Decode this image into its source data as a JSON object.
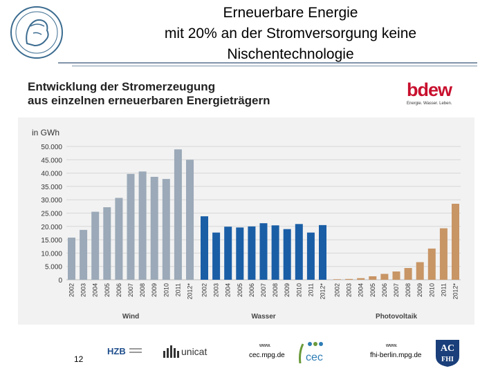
{
  "slide": {
    "title_line1": "Erneuerbare Energie",
    "title_line2": "mit 20% an der Stromversorgung keine",
    "title_line3": "Nischentechnologie",
    "page_number": "12"
  },
  "chart_header": {
    "line1": "Entwicklung der Stromerzeugung",
    "line2": "aus einzelnen erneuerbaren Energieträgern"
  },
  "bdew": {
    "name": "bdew",
    "tagline": "Energie. Wasser. Leben."
  },
  "footer": {
    "hzb_line1": "HZB",
    "unicat_text": "unicat",
    "cec_www": "www.",
    "cec_url": "cec.mpg.de",
    "cec_letters": "cec",
    "fhi_www": "www.",
    "fhi_url": "fhi-berlin.mpg.de",
    "ac_top": "AC",
    "ac_bottom": "FHI"
  },
  "chart_data": {
    "type": "bar",
    "ylabel": "in GWh",
    "ylim": [
      0,
      50000
    ],
    "yticks": [
      "0",
      "5.000",
      "10.000",
      "15.000",
      "20.000",
      "25.000",
      "30.000",
      "35.000",
      "40.000",
      "45.000",
      "50.000"
    ],
    "grid": true,
    "categories": [
      "2002",
      "2003",
      "2004",
      "2005",
      "2006",
      "2007",
      "2008",
      "2009",
      "2010",
      "2011",
      "2012*"
    ],
    "series": [
      {
        "name": "Wind",
        "color": "#9ba9b8",
        "values": [
          15800,
          18700,
          25500,
          27200,
          30700,
          39700,
          40600,
          38600,
          37800,
          48900,
          45000
        ]
      },
      {
        "name": "Wasser",
        "color": "#1a5ea6",
        "values": [
          23800,
          17700,
          19900,
          19600,
          20000,
          21200,
          20400,
          19000,
          20900,
          17700,
          20500
        ]
      },
      {
        "name": "Photovoltaik",
        "color": "#c89565",
        "values": [
          200,
          300,
          600,
          1300,
          2200,
          3100,
          4400,
          6600,
          11700,
          19300,
          28500
        ]
      }
    ]
  }
}
